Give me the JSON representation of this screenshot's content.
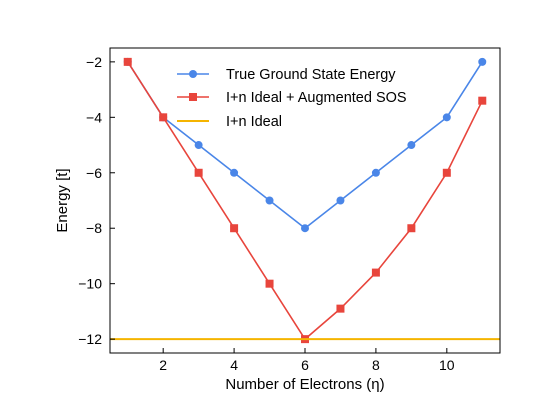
{
  "chart_data": {
    "type": "line",
    "xlabel": "Number of Electrons (η)",
    "ylabel": "Energy [t]",
    "xlim": [
      0.5,
      11.5
    ],
    "ylim": [
      -12.5,
      -1.5
    ],
    "xticks": [
      2,
      4,
      6,
      8,
      10
    ],
    "yticks": [
      -2,
      -4,
      -6,
      -8,
      -10,
      -12
    ],
    "xtick_labels": [
      "2",
      "4",
      "6",
      "8",
      "10"
    ],
    "ytick_labels": [
      "−2",
      "−4",
      "−6",
      "−8",
      "−10",
      "−12"
    ],
    "grid": false,
    "legend_position": "top-center",
    "series": [
      {
        "name": "True Ground State Energy",
        "color": "#4a86e8",
        "marker": "circle",
        "x": [
          1,
          2,
          3,
          4,
          5,
          6,
          7,
          8,
          9,
          10,
          11
        ],
        "y": [
          -2,
          -4,
          -5,
          -6,
          -7,
          -8,
          -7,
          -6,
          -5,
          -4,
          -2
        ]
      },
      {
        "name": "I+n Ideal + Augmented SOS",
        "color": "#e8453c",
        "marker": "square",
        "x": [
          1,
          2,
          3,
          4,
          5,
          6,
          7,
          8,
          9,
          10,
          11
        ],
        "y": [
          -2,
          -4,
          -6,
          -8,
          -10,
          -12,
          -10.9,
          -9.6,
          -8,
          -6,
          -3.4
        ]
      },
      {
        "name": "I+n Ideal",
        "color": "#f5b400",
        "marker": "none",
        "hline": -12
      }
    ]
  }
}
